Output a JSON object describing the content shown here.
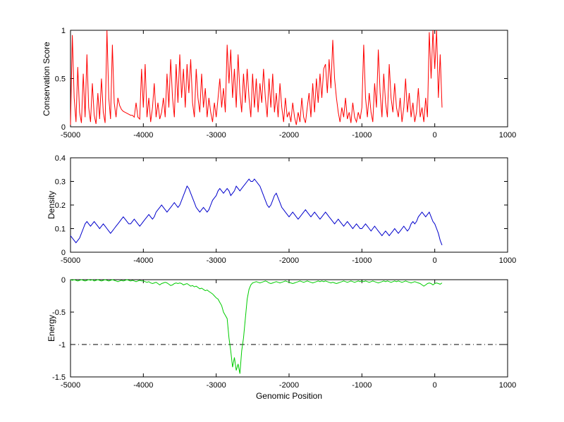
{
  "background": "#ffffff",
  "axis_color": "#000000",
  "chart_data": [
    {
      "type": "line",
      "title": "",
      "ylabel": "Conservation Score",
      "xlabel": "",
      "xlim": [
        -5000,
        1000
      ],
      "ylim": [
        0,
        1
      ],
      "xticks": [
        -5000,
        -4000,
        -3000,
        -2000,
        -1000,
        0,
        1000
      ],
      "yticks": [
        0,
        0.5,
        1
      ],
      "grid": false,
      "legend": "none",
      "series": [
        {
          "name": "conservation-score",
          "color": "#ff0000",
          "x_start": -5000,
          "x_step": 25,
          "values": [
            0.02,
            0.95,
            0.3,
            0.05,
            0.62,
            0.15,
            0.04,
            0.55,
            0.1,
            0.75,
            0.2,
            0.05,
            0.45,
            0.12,
            0.03,
            0.35,
            0.08,
            0.5,
            0.15,
            0.04,
            1.0,
            0.3,
            0.08,
            0.85,
            0.25,
            0.1,
            0.3,
            0.22,
            0.18,
            0.16,
            0.15,
            0.14,
            0.13,
            0.12,
            0.12,
            0.1,
            0.25,
            0.1,
            0.08,
            0.6,
            0.2,
            0.65,
            0.1,
            0.3,
            0.05,
            0.2,
            0.45,
            0.1,
            0.25,
            0.08,
            0.15,
            0.3,
            0.1,
            0.55,
            0.2,
            0.7,
            0.3,
            0.1,
            0.65,
            0.25,
            0.75,
            0.3,
            0.6,
            0.2,
            0.65,
            0.35,
            0.7,
            0.25,
            0.1,
            0.6,
            0.3,
            0.15,
            0.55,
            0.2,
            0.4,
            0.1,
            0.3,
            0.15,
            0.05,
            0.25,
            0.1,
            0.3,
            0.5,
            0.2,
            0.4,
            0.15,
            0.85,
            0.45,
            0.8,
            0.3,
            0.6,
            0.2,
            0.75,
            0.35,
            0.15,
            0.55,
            0.25,
            0.6,
            0.3,
            0.1,
            0.55,
            0.2,
            0.5,
            0.15,
            0.45,
            0.25,
            0.6,
            0.3,
            0.1,
            0.5,
            0.2,
            0.55,
            0.15,
            0.35,
            0.1,
            0.45,
            0.2,
            0.05,
            0.3,
            0.1,
            0.15,
            0.05,
            0.25,
            0.1,
            0.02,
            0.15,
            0.05,
            0.3,
            0.1,
            0.04,
            0.2,
            0.35,
            0.1,
            0.45,
            0.15,
            0.5,
            0.25,
            0.55,
            0.3,
            0.6,
            0.65,
            0.35,
            0.7,
            0.4,
            0.9,
            0.5,
            0.3,
            0.15,
            0.05,
            0.2,
            0.1,
            0.3,
            0.08,
            0.15,
            0.04,
            0.25,
            0.1,
            0.05,
            0.15,
            0.08,
            0.2,
            0.85,
            0.3,
            0.1,
            0.35,
            0.15,
            0.05,
            0.45,
            0.2,
            0.8,
            0.35,
            0.1,
            0.55,
            0.25,
            0.1,
            0.65,
            0.3,
            0.15,
            0.45,
            0.2,
            0.1,
            0.3,
            0.05,
            0.2,
            0.5,
            0.15,
            0.35,
            0.1,
            0.25,
            0.05,
            0.15,
            0.4,
            0.1,
            0.2,
            0.05,
            0.3,
            0.1,
            0.98,
            0.5,
            1.0,
            0.6,
            1.0,
            0.3,
            0.75,
            0.2
          ]
        }
      ]
    },
    {
      "type": "line",
      "title": "",
      "ylabel": "Density",
      "xlabel": "",
      "xlim": [
        -5000,
        1000
      ],
      "ylim": [
        0,
        0.4
      ],
      "xticks": [
        -5000,
        -4000,
        -3000,
        -2000,
        -1000,
        0,
        1000
      ],
      "yticks": [
        0,
        0.1,
        0.2,
        0.3,
        0.4
      ],
      "grid": false,
      "legend": "none",
      "series": [
        {
          "name": "density",
          "color": "#0000cc",
          "x_start": -5000,
          "x_step": 25,
          "values": [
            0.07,
            0.06,
            0.05,
            0.04,
            0.05,
            0.06,
            0.08,
            0.1,
            0.12,
            0.13,
            0.12,
            0.11,
            0.12,
            0.13,
            0.12,
            0.11,
            0.1,
            0.11,
            0.12,
            0.11,
            0.1,
            0.09,
            0.08,
            0.09,
            0.1,
            0.11,
            0.12,
            0.13,
            0.14,
            0.15,
            0.14,
            0.13,
            0.12,
            0.12,
            0.13,
            0.14,
            0.13,
            0.12,
            0.11,
            0.12,
            0.13,
            0.14,
            0.15,
            0.16,
            0.15,
            0.14,
            0.15,
            0.17,
            0.18,
            0.19,
            0.2,
            0.19,
            0.18,
            0.17,
            0.18,
            0.19,
            0.2,
            0.21,
            0.2,
            0.19,
            0.2,
            0.22,
            0.24,
            0.26,
            0.28,
            0.27,
            0.25,
            0.23,
            0.21,
            0.19,
            0.18,
            0.17,
            0.18,
            0.19,
            0.18,
            0.17,
            0.18,
            0.2,
            0.22,
            0.23,
            0.24,
            0.26,
            0.27,
            0.26,
            0.25,
            0.26,
            0.27,
            0.26,
            0.24,
            0.25,
            0.26,
            0.28,
            0.27,
            0.26,
            0.27,
            0.28,
            0.29,
            0.3,
            0.31,
            0.3,
            0.3,
            0.31,
            0.3,
            0.29,
            0.28,
            0.26,
            0.24,
            0.22,
            0.2,
            0.19,
            0.2,
            0.22,
            0.24,
            0.25,
            0.23,
            0.21,
            0.19,
            0.18,
            0.17,
            0.16,
            0.15,
            0.16,
            0.17,
            0.16,
            0.15,
            0.14,
            0.15,
            0.16,
            0.17,
            0.18,
            0.17,
            0.16,
            0.15,
            0.16,
            0.17,
            0.16,
            0.15,
            0.14,
            0.15,
            0.16,
            0.17,
            0.16,
            0.15,
            0.14,
            0.13,
            0.12,
            0.13,
            0.14,
            0.13,
            0.12,
            0.11,
            0.12,
            0.13,
            0.12,
            0.11,
            0.1,
            0.11,
            0.12,
            0.11,
            0.1,
            0.1,
            0.11,
            0.12,
            0.11,
            0.1,
            0.09,
            0.1,
            0.11,
            0.1,
            0.09,
            0.08,
            0.07,
            0.08,
            0.09,
            0.08,
            0.07,
            0.08,
            0.09,
            0.1,
            0.09,
            0.08,
            0.09,
            0.1,
            0.11,
            0.1,
            0.09,
            0.1,
            0.12,
            0.13,
            0.12,
            0.13,
            0.15,
            0.16,
            0.17,
            0.16,
            0.15,
            0.16,
            0.17,
            0.15,
            0.13,
            0.12,
            0.1,
            0.08,
            0.05,
            0.03
          ]
        }
      ]
    },
    {
      "type": "line",
      "title": "",
      "ylabel": "Energy",
      "xlabel": "Genomic Position",
      "xlim": [
        -5000,
        1000
      ],
      "ylim": [
        -1.5,
        0
      ],
      "xticks": [
        -5000,
        -4000,
        -3000,
        -2000,
        -1000,
        0,
        1000
      ],
      "yticks": [
        -1.5,
        -1,
        -0.5,
        0
      ],
      "grid": false,
      "legend": "none",
      "reference_lines": [
        {
          "y": -1,
          "style": "dash-dot",
          "color": "#000000"
        }
      ],
      "series": [
        {
          "name": "energy",
          "color": "#00cc00",
          "x_start": -5000,
          "x_step": 25,
          "values": [
            0,
            -0.01,
            0,
            -0.01,
            -0.02,
            -0.01,
            0,
            -0.01,
            -0.02,
            -0.01,
            0,
            -0.01,
            0,
            -0.02,
            -0.01,
            0,
            -0.01,
            -0.02,
            -0.01,
            0,
            -0.01,
            -0.02,
            -0.01,
            0,
            -0.01,
            -0.02,
            -0.03,
            -0.02,
            -0.01,
            -0.02,
            -0.01,
            0,
            -0.01,
            -0.02,
            -0.01,
            -0.02,
            -0.03,
            -0.02,
            -0.01,
            -0.02,
            -0.02,
            -0.03,
            -0.04,
            -0.03,
            -0.05,
            -0.06,
            -0.05,
            -0.04,
            -0.06,
            -0.08,
            -0.06,
            -0.05,
            -0.04,
            -0.05,
            -0.07,
            -0.09,
            -0.08,
            -0.06,
            -0.05,
            -0.06,
            -0.05,
            -0.06,
            -0.08,
            -0.07,
            -0.06,
            -0.08,
            -0.1,
            -0.09,
            -0.11,
            -0.1,
            -0.12,
            -0.14,
            -0.13,
            -0.15,
            -0.17,
            -0.16,
            -0.18,
            -0.2,
            -0.22,
            -0.25,
            -0.28,
            -0.3,
            -0.35,
            -0.4,
            -0.5,
            -0.55,
            -0.6,
            -0.9,
            -1.1,
            -1.35,
            -1.2,
            -1.4,
            -1.3,
            -1.45,
            -1.1,
            -0.9,
            -0.6,
            -0.3,
            -0.15,
            -0.08,
            -0.05,
            -0.04,
            -0.03,
            -0.04,
            -0.05,
            -0.04,
            -0.03,
            -0.02,
            -0.03,
            -0.05,
            -0.06,
            -0.05,
            -0.04,
            -0.03,
            -0.04,
            -0.05,
            -0.04,
            -0.03,
            -0.02,
            -0.03,
            -0.04,
            -0.05,
            -0.06,
            -0.05,
            -0.04,
            -0.03,
            -0.02,
            -0.03,
            -0.04,
            -0.03,
            -0.02,
            -0.03,
            -0.04,
            -0.05,
            -0.04,
            -0.03,
            -0.02,
            -0.03,
            -0.02,
            -0.03,
            -0.02,
            -0.03,
            -0.04,
            -0.05,
            -0.04,
            -0.05,
            -0.06,
            -0.05,
            -0.04,
            -0.03,
            -0.02,
            -0.03,
            -0.04,
            -0.03,
            -0.02,
            -0.03,
            -0.04,
            -0.03,
            -0.02,
            -0.03,
            -0.02,
            -0.03,
            -0.02,
            -0.03,
            -0.04,
            -0.03,
            -0.02,
            -0.03,
            -0.04,
            -0.05,
            -0.04,
            -0.03,
            -0.02,
            -0.03,
            -0.02,
            -0.03,
            -0.04,
            -0.03,
            -0.02,
            -0.03,
            -0.02,
            -0.03,
            -0.04,
            -0.03,
            -0.02,
            -0.03,
            -0.04,
            -0.05,
            -0.04,
            -0.03,
            -0.04,
            -0.05,
            -0.06,
            -0.08,
            -0.1,
            -0.08,
            -0.06,
            -0.05,
            -0.06,
            -0.08,
            -0.06,
            -0.05,
            -0.06,
            -0.07,
            -0.05
          ]
        }
      ]
    }
  ]
}
